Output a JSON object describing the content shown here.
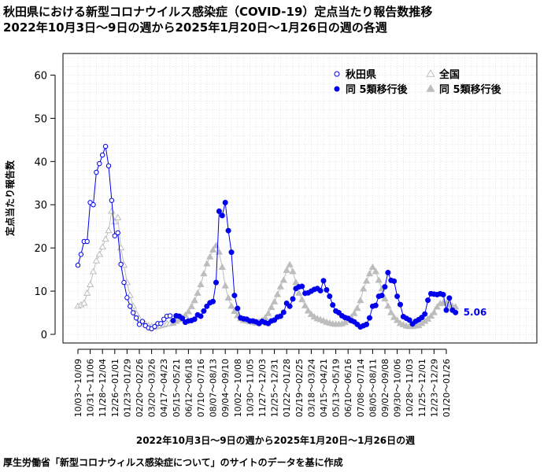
{
  "title_line1": "秋田県における新型コロナウイルス感染症（COVID-19）定点当たり報告数推移",
  "title_line2": "2022年10月3日～9日の週から2025年1月20日～1月26日の週の各週",
  "xlabel": "2022年10月3日～9日の週から2025年1月20日～1月26日の週",
  "source": "厚生労働省「新型コロナウィルス感染症について」のサイトのデータを基に作成",
  "colors": {
    "akita": "#0000ee",
    "national": "#bdbdbd"
  },
  "chart_data": {
    "type": "line",
    "title": "秋田県における新型コロナウイルス感染症（COVID-19）定点当たり報告数推移",
    "xlabel": "2022年10月3日～9日の週から2025年1月20日～1月26日の週",
    "ylabel": "定点当たり報告数",
    "ylim": [
      0,
      65
    ],
    "yticks": [
      0,
      10,
      20,
      30,
      40,
      50,
      60
    ],
    "grid": true,
    "legend_position": "top-right",
    "x_tick_labels": [
      "10/03～10/09",
      "10/31～11/06",
      "11/28～12/04",
      "12/26～01/01",
      "01/23～01/29",
      "02/20～02/26",
      "03/20～03/26",
      "04/17～04/23",
      "05/15～05/21",
      "06/12～06/18",
      "07/10～07/16",
      "08/07～08/13",
      "09/04～09/10",
      "10/02～10/08",
      "10/30～11/05",
      "11/27～12/03",
      "12/25～12/31",
      "01/22～01/28",
      "02/19～02/25",
      "03/18～03/24",
      "04/15～04/21",
      "05/13～05/19",
      "06/10～06/16",
      "07/08～07/14",
      "08/05～08/11",
      "09/02～09/08",
      "09/30～10/06",
      "10/28～11/03",
      "11/25～12/01",
      "12/23～12/29",
      "01/20～01/26"
    ],
    "last_value_label": "5.06",
    "series": [
      {
        "name": "秋田県",
        "marker": "open-circle",
        "values": [
          16,
          18.5,
          21.5,
          21.5,
          30.5,
          30,
          37.5,
          39.5,
          41.5,
          43.5,
          39,
          31,
          22.8,
          23.5,
          16.2,
          12,
          8.5,
          6.5,
          5,
          3.8,
          2.3,
          3,
          2,
          1.5,
          1.3,
          1.8,
          2.5,
          2.5,
          3.5,
          4.2,
          4.3
        ]
      },
      {
        "name": "同 5類移行後",
        "marker": "filled-circle",
        "values": [
          3.2,
          4.3,
          4.2,
          3.7,
          2.8,
          3.1,
          3.2,
          3.5,
          4.5,
          4.2,
          5.4,
          6.5,
          7.3,
          7.6,
          12,
          28.5,
          27.5,
          30.5,
          24,
          19,
          9,
          6,
          3.8,
          3.6,
          3.5,
          3.1,
          3.1,
          2.9,
          2.5,
          3,
          2.7,
          2.5,
          3.1,
          3.3,
          4,
          4.2,
          5.1,
          7.2,
          6.5,
          8.2,
          10.6,
          11,
          11.1,
          9.5,
          9.6,
          10,
          10.4,
          10.6,
          10.1,
          12.4,
          10.3,
          8.8,
          6.8,
          5.4,
          5,
          4.3,
          3.9,
          3.7,
          3.2,
          2.9,
          2.3,
          1.7,
          2,
          2.3,
          3.8,
          6.5,
          6.7,
          8.8,
          9,
          11,
          14.3,
          12.5,
          12.3,
          8.8,
          6.9,
          4.1,
          3.7,
          3.3,
          2.4,
          3,
          3.4,
          3.9,
          4.7,
          7.9,
          9.4,
          9.3,
          9.2,
          9.4,
          9.2,
          5.6,
          8.4,
          5.6,
          5.06
        ]
      },
      {
        "name": "全国",
        "marker": "open-triangle",
        "values": [
          6.5,
          6.8,
          7.2,
          9.5,
          11.5,
          14.5,
          17,
          18.5,
          20.2,
          22,
          24,
          28.5,
          26,
          27,
          20,
          16,
          12,
          9,
          6.5,
          4.8,
          3.6,
          2.8,
          2.3,
          2,
          1.8,
          1.7,
          1.8,
          2,
          2.2,
          2.4,
          2.5
        ]
      },
      {
        "name": "同 5類移行後",
        "marker": "filled-triangle",
        "values": [
          2.6,
          3,
          3.4,
          3.8,
          4.4,
          5.2,
          6.4,
          7.8,
          9.5,
          11.5,
          14,
          16.3,
          17.9,
          19.5,
          20.5,
          19,
          15.5,
          11.2,
          8.4,
          6.5,
          5.3,
          4.3,
          3.6,
          3.2,
          3.1,
          2.9,
          2.8,
          2.6,
          2.8,
          3.2,
          3.8,
          4.8,
          6.2,
          7.5,
          9.2,
          11,
          12.5,
          14.8,
          16.1,
          14.5,
          12,
          9.5,
          8,
          6.6,
          5.4,
          4.6,
          4,
          3.6,
          3.4,
          3.1,
          2.8,
          2.6,
          2.4,
          2.3,
          2.3,
          2.4,
          2.7,
          3.2,
          3.9,
          4.8,
          6,
          7.8,
          10.5,
          12.3,
          14,
          15.5,
          14.5,
          12.5,
          10.5,
          8.2,
          6.5,
          5,
          3.9,
          3.2,
          2.5,
          2.2,
          1.9,
          1.8,
          1.8,
          1.9,
          2,
          2.5,
          3,
          3.5,
          4.2,
          5,
          6.3,
          7.1,
          7.3,
          7.2,
          6.8,
          6.5,
          6.32
        ]
      }
    ]
  }
}
